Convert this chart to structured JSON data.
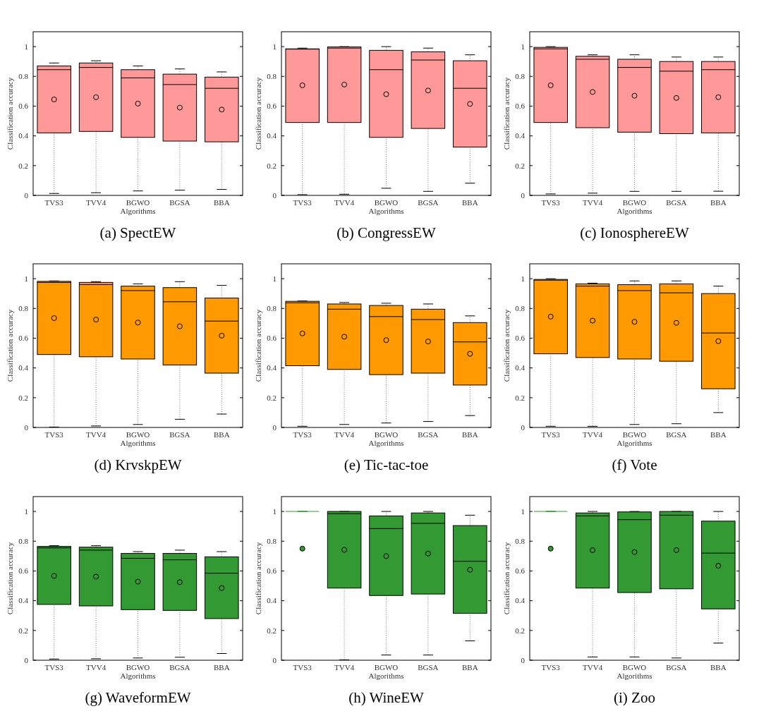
{
  "chart_data": [
    {
      "type": "box",
      "title": "(a) SpectEW",
      "xlabel": "Algorithms",
      "ylabel": "Classification accuracy",
      "categories": [
        "TVS3",
        "TVV4",
        "BGWO",
        "BGSA",
        "BBA"
      ],
      "ylim": [
        0,
        1.1
      ],
      "yticks": [
        0,
        0.2,
        0.4,
        0.6,
        0.8,
        1
      ],
      "series": [
        {
          "color": "#ff9999",
          "boxes": [
            {
              "low": 0.013,
              "q1": 0.42,
              "median": 0.845,
              "q3": 0.87,
              "high": 0.89,
              "mean": 0.645
            },
            {
              "low": 0.018,
              "q1": 0.43,
              "median": 0.86,
              "q3": 0.89,
              "high": 0.905,
              "mean": 0.66
            },
            {
              "low": 0.03,
              "q1": 0.39,
              "median": 0.79,
              "q3": 0.845,
              "high": 0.87,
              "mean": 0.617
            },
            {
              "low": 0.035,
              "q1": 0.365,
              "median": 0.745,
              "q3": 0.815,
              "high": 0.85,
              "mean": 0.59
            },
            {
              "low": 0.04,
              "q1": 0.36,
              "median": 0.72,
              "q3": 0.795,
              "high": 0.83,
              "mean": 0.577
            }
          ]
        }
      ]
    },
    {
      "type": "box",
      "title": "(b) CongressEW",
      "xlabel": "Algorithms",
      "ylabel": "Classification accuracy",
      "categories": [
        "TVS3",
        "TVV4",
        "BGWO",
        "BGSA",
        "BBA"
      ],
      "ylim": [
        0,
        1.1
      ],
      "yticks": [
        0,
        0.2,
        0.4,
        0.6,
        0.8,
        1
      ],
      "series": [
        {
          "color": "#ff9999",
          "boxes": [
            {
              "low": 0.005,
              "q1": 0.49,
              "median": 0.983,
              "q3": 0.985,
              "high": 0.99,
              "mean": 0.74
            },
            {
              "low": 0.008,
              "q1": 0.49,
              "median": 0.99,
              "q3": 0.998,
              "high": 1.0,
              "mean": 0.745
            },
            {
              "low": 0.048,
              "q1": 0.39,
              "median": 0.845,
              "q3": 0.975,
              "high": 1.0,
              "mean": 0.68
            },
            {
              "low": 0.027,
              "q1": 0.45,
              "median": 0.91,
              "q3": 0.965,
              "high": 0.99,
              "mean": 0.705
            },
            {
              "low": 0.082,
              "q1": 0.325,
              "median": 0.72,
              "q3": 0.905,
              "high": 0.945,
              "mean": 0.615
            }
          ]
        }
      ]
    },
    {
      "type": "box",
      "title": "(c) IonosphereEW",
      "xlabel": "Algorithms",
      "ylabel": "Classification accuracy",
      "categories": [
        "TVS3",
        "TVV4",
        "BGWO",
        "BGSA",
        "BBA"
      ],
      "ylim": [
        0,
        1.1
      ],
      "yticks": [
        0,
        0.2,
        0.4,
        0.6,
        0.8,
        1
      ],
      "series": [
        {
          "color": "#ff9999",
          "boxes": [
            {
              "low": 0.01,
              "q1": 0.49,
              "median": 0.985,
              "q3": 0.995,
              "high": 1.0,
              "mean": 0.74
            },
            {
              "low": 0.015,
              "q1": 0.455,
              "median": 0.915,
              "q3": 0.935,
              "high": 0.945,
              "mean": 0.695
            },
            {
              "low": 0.027,
              "q1": 0.425,
              "median": 0.86,
              "q3": 0.915,
              "high": 0.945,
              "mean": 0.67
            },
            {
              "low": 0.027,
              "q1": 0.415,
              "median": 0.835,
              "q3": 0.9,
              "high": 0.93,
              "mean": 0.655
            },
            {
              "low": 0.028,
              "q1": 0.42,
              "median": 0.845,
              "q3": 0.9,
              "high": 0.93,
              "mean": 0.66
            }
          ]
        }
      ]
    },
    {
      "type": "box",
      "title": "(d) KrvskpEW",
      "xlabel": "Algorithms",
      "ylabel": "Classification accuracy",
      "categories": [
        "TVS3",
        "TVV4",
        "BGWO",
        "BGSA",
        "BBA"
      ],
      "ylim": [
        0,
        1.1
      ],
      "yticks": [
        0,
        0.2,
        0.4,
        0.6,
        0.8,
        1
      ],
      "series": [
        {
          "color": "#ff9900",
          "boxes": [
            {
              "low": 0.003,
              "q1": 0.49,
              "median": 0.975,
              "q3": 0.982,
              "high": 0.985,
              "mean": 0.735
            },
            {
              "low": 0.01,
              "q1": 0.475,
              "median": 0.96,
              "q3": 0.975,
              "high": 0.98,
              "mean": 0.725
            },
            {
              "low": 0.02,
              "q1": 0.46,
              "median": 0.92,
              "q3": 0.95,
              "high": 0.965,
              "mean": 0.705
            },
            {
              "low": 0.055,
              "q1": 0.42,
              "median": 0.845,
              "q3": 0.94,
              "high": 0.98,
              "mean": 0.68
            },
            {
              "low": 0.09,
              "q1": 0.365,
              "median": 0.715,
              "q3": 0.87,
              "high": 0.955,
              "mean": 0.617
            }
          ]
        }
      ]
    },
    {
      "type": "box",
      "title": "(e) Tic-tac-toe",
      "xlabel": "Algorithms",
      "ylabel": "Classification accuracy",
      "categories": [
        "TVS3",
        "TVV4",
        "BGWO",
        "BGSA",
        "BBA"
      ],
      "ylim": [
        0,
        1.1
      ],
      "yticks": [
        0,
        0.2,
        0.4,
        0.6,
        0.8,
        1
      ],
      "series": [
        {
          "color": "#ff9900",
          "boxes": [
            {
              "low": 0.008,
              "q1": 0.415,
              "median": 0.838,
              "q3": 0.848,
              "high": 0.85,
              "mean": 0.632
            },
            {
              "low": 0.02,
              "q1": 0.39,
              "median": 0.795,
              "q3": 0.83,
              "high": 0.84,
              "mean": 0.61
            },
            {
              "low": 0.03,
              "q1": 0.355,
              "median": 0.745,
              "q3": 0.82,
              "high": 0.835,
              "mean": 0.587
            },
            {
              "low": 0.04,
              "q1": 0.365,
              "median": 0.725,
              "q3": 0.795,
              "high": 0.83,
              "mean": 0.578
            },
            {
              "low": 0.08,
              "q1": 0.285,
              "median": 0.575,
              "q3": 0.705,
              "high": 0.75,
              "mean": 0.495
            }
          ]
        }
      ]
    },
    {
      "type": "box",
      "title": "(f) Vote",
      "xlabel": "Algorithms",
      "ylabel": "Classification accuracy",
      "categories": [
        "TVS3",
        "TVV4",
        "BGWO",
        "BGSA",
        "BBA"
      ],
      "ylim": [
        0,
        1.1
      ],
      "yticks": [
        0,
        0.2,
        0.4,
        0.6,
        0.8,
        1
      ],
      "series": [
        {
          "color": "#ff9900",
          "boxes": [
            {
              "low": 0.008,
              "q1": 0.495,
              "median": 0.99,
              "q3": 0.995,
              "high": 1.0,
              "mean": 0.745
            },
            {
              "low": 0.008,
              "q1": 0.47,
              "median": 0.95,
              "q3": 0.965,
              "high": 0.97,
              "mean": 0.718
            },
            {
              "low": 0.02,
              "q1": 0.46,
              "median": 0.92,
              "q3": 0.96,
              "high": 0.985,
              "mean": 0.71
            },
            {
              "low": 0.025,
              "q1": 0.445,
              "median": 0.905,
              "q3": 0.965,
              "high": 0.985,
              "mean": 0.703
            },
            {
              "low": 0.1,
              "q1": 0.26,
              "median": 0.635,
              "q3": 0.9,
              "high": 0.95,
              "mean": 0.58
            }
          ]
        }
      ]
    },
    {
      "type": "box",
      "title": "(g) WaveformEW",
      "xlabel": "Algorithms",
      "ylabel": "Classification accuracy",
      "categories": [
        "TVS3",
        "TVV4",
        "BGWO",
        "BGSA",
        "BBA"
      ],
      "ylim": [
        0,
        1.1
      ],
      "yticks": [
        0,
        0.2,
        0.4,
        0.6,
        0.8,
        1
      ],
      "series": [
        {
          "color": "#339933",
          "boxes": [
            {
              "low": 0.008,
              "q1": 0.375,
              "median": 0.755,
              "q3": 0.765,
              "high": 0.77,
              "mean": 0.567
            },
            {
              "low": 0.01,
              "q1": 0.365,
              "median": 0.74,
              "q3": 0.76,
              "high": 0.77,
              "mean": 0.562
            },
            {
              "low": 0.015,
              "q1": 0.34,
              "median": 0.685,
              "q3": 0.718,
              "high": 0.73,
              "mean": 0.528
            },
            {
              "low": 0.02,
              "q1": 0.335,
              "median": 0.675,
              "q3": 0.718,
              "high": 0.74,
              "mean": 0.525
            },
            {
              "low": 0.045,
              "q1": 0.28,
              "median": 0.585,
              "q3": 0.695,
              "high": 0.73,
              "mean": 0.485
            }
          ]
        }
      ]
    },
    {
      "type": "box",
      "title": "(h) WineEW",
      "xlabel": "Algorithms",
      "ylabel": "Classification accuracy",
      "categories": [
        "TVS3",
        "TVV4",
        "BGWO",
        "BGSA",
        "BBA"
      ],
      "ylim": [
        0,
        1.1
      ],
      "yticks": [
        0,
        0.2,
        0.4,
        0.6,
        0.8,
        1
      ],
      "series": [
        {
          "color": "#339933",
          "boxes": [
            {
              "low": 1.0,
              "q1": 1.0,
              "median": 1.0,
              "q3": 1.0,
              "high": 1.0,
              "mean": 0.75
            },
            {
              "low": 0.003,
              "q1": 0.485,
              "median": 0.985,
              "q3": 1.0,
              "high": 1.0,
              "mean": 0.742
            },
            {
              "low": 0.035,
              "q1": 0.435,
              "median": 0.885,
              "q3": 0.97,
              "high": 1.0,
              "mean": 0.7
            },
            {
              "low": 0.035,
              "q1": 0.445,
              "median": 0.92,
              "q3": 0.99,
              "high": 1.0,
              "mean": 0.717
            },
            {
              "low": 0.13,
              "q1": 0.315,
              "median": 0.665,
              "q3": 0.905,
              "high": 0.975,
              "mean": 0.608
            }
          ]
        }
      ]
    },
    {
      "type": "box",
      "title": "(i) Zoo",
      "xlabel": "Algorithms",
      "ylabel": "Classification accuracy",
      "categories": [
        "TVS3",
        "TVV4",
        "BGWO",
        "BGSA",
        "BBA"
      ],
      "ylim": [
        0,
        1.1
      ],
      "yticks": [
        0,
        0.2,
        0.4,
        0.6,
        0.8,
        1
      ],
      "series": [
        {
          "color": "#339933",
          "boxes": [
            {
              "low": 1.0,
              "q1": 1.0,
              "median": 1.0,
              "q3": 1.0,
              "high": 1.0,
              "mean": 0.75
            },
            {
              "low": 0.022,
              "q1": 0.485,
              "median": 0.97,
              "q3": 0.99,
              "high": 1.0,
              "mean": 0.74
            },
            {
              "low": 0.022,
              "q1": 0.455,
              "median": 0.945,
              "q3": 0.997,
              "high": 1.0,
              "mean": 0.727
            },
            {
              "low": 0.015,
              "q1": 0.48,
              "median": 0.975,
              "q3": 1.0,
              "high": 1.0,
              "mean": 0.74
            },
            {
              "low": 0.115,
              "q1": 0.345,
              "median": 0.72,
              "q3": 0.935,
              "high": 1.0,
              "mean": 0.635
            }
          ]
        }
      ]
    }
  ]
}
